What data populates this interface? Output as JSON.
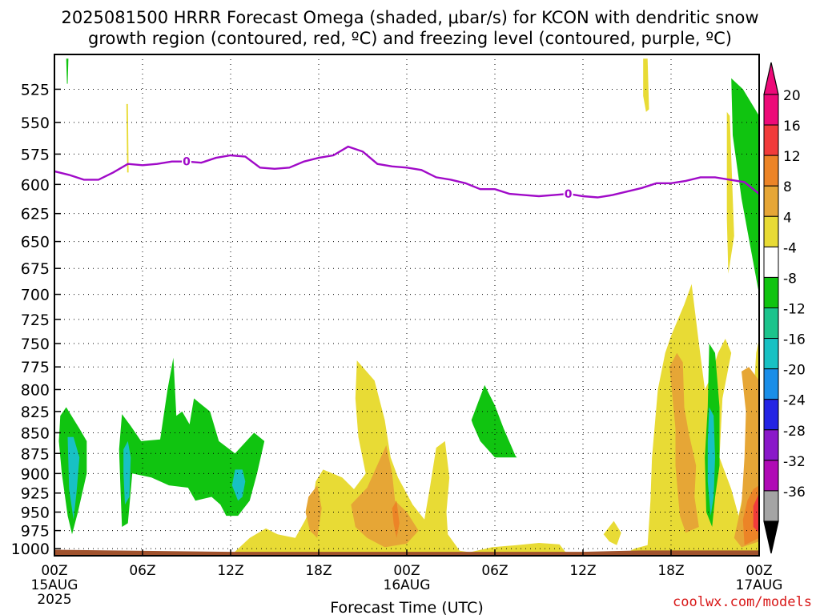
{
  "chart_data": {
    "type": "contour",
    "title_line1": "2025081500 HRRR Forecast Omega (shaded, μbar/s) for KCON with dendritic snow",
    "title_line2": "growth region (contoured, red, ºC) and freezing level (contoured, purple, ºC)",
    "xlabel": "Forecast Time (UTC)",
    "credit": "coolwx.com/models",
    "x_ticks": [
      {
        "hour": 0,
        "label": "00Z",
        "sub": "15AUG",
        "sub2": "2025"
      },
      {
        "hour": 6,
        "label": "06Z"
      },
      {
        "hour": 12,
        "label": "12Z"
      },
      {
        "hour": 18,
        "label": "18Z"
      },
      {
        "hour": 24,
        "label": "00Z",
        "sub": "16AUG"
      },
      {
        "hour": 30,
        "label": "06Z"
      },
      {
        "hour": 36,
        "label": "12Z"
      },
      {
        "hour": 42,
        "label": "18Z"
      },
      {
        "hour": 48,
        "label": "00Z",
        "sub": "17AUG"
      }
    ],
    "x_range_hours": [
      0,
      48
    ],
    "y_ticks": [
      525,
      550,
      575,
      600,
      625,
      650,
      675,
      700,
      725,
      750,
      775,
      800,
      825,
      850,
      875,
      900,
      925,
      950,
      975,
      1000
    ],
    "y_range_hPa": [
      500,
      1010
    ],
    "y_scale": "log-pressure",
    "colorbar_labels": [
      "20",
      "16",
      "12",
      "8",
      "4",
      "-4",
      "-8",
      "-12",
      "-16",
      "-20",
      "-24",
      "-28",
      "-32",
      "-36"
    ],
    "colorbar_colors": [
      "#ed0a78",
      "#f13b3b",
      "#ec8427",
      "#e6a636",
      "#e8db35",
      "#ffffff",
      "#10c410",
      "#1cc48c",
      "#18c1c3",
      "#1a8ee8",
      "#2424e4",
      "#8a18c9",
      "#b00ab5",
      "#a4a4a4"
    ],
    "colors": {
      "purple_line": "#a00ac8",
      "ground": "#a0522d",
      "green": "#10c410",
      "yellow": "#e8db35",
      "orange": "#e6a636",
      "darkorange": "#ec8427",
      "red": "#f13b3b",
      "teal": "#18c1c3"
    },
    "freezing_level_label": "0",
    "freezing_level": [
      [
        0,
        589
      ],
      [
        1,
        592
      ],
      [
        2,
        596
      ],
      [
        3,
        596
      ],
      [
        4,
        590
      ],
      [
        5,
        583
      ],
      [
        6,
        584
      ],
      [
        7,
        583
      ],
      [
        8,
        581
      ],
      [
        9,
        581
      ],
      [
        10,
        582
      ],
      [
        11,
        578
      ],
      [
        12,
        576
      ],
      [
        13,
        577
      ],
      [
        14,
        586
      ],
      [
        15,
        587
      ],
      [
        16,
        586
      ],
      [
        17,
        581
      ],
      [
        18,
        578
      ],
      [
        19,
        576
      ],
      [
        20,
        569
      ],
      [
        21,
        573
      ],
      [
        22,
        583
      ],
      [
        23,
        585
      ],
      [
        24,
        586
      ],
      [
        25,
        588
      ],
      [
        26,
        594
      ],
      [
        27,
        596
      ],
      [
        28,
        599
      ],
      [
        29,
        604
      ],
      [
        30,
        604
      ],
      [
        31,
        608
      ],
      [
        32,
        609
      ],
      [
        33,
        610
      ],
      [
        34,
        609
      ],
      [
        35,
        608
      ],
      [
        36,
        610
      ],
      [
        37,
        611
      ],
      [
        38,
        609
      ],
      [
        39,
        606
      ],
      [
        40,
        603
      ],
      [
        41,
        599
      ],
      [
        42,
        599
      ],
      [
        43,
        597
      ],
      [
        44,
        594
      ],
      [
        45,
        594
      ],
      [
        46,
        596
      ],
      [
        47,
        598
      ],
      [
        48,
        608
      ]
    ],
    "regions": [
      {
        "name": "omega-plus4-hr0-sliver",
        "fill": "green",
        "pts": [
          [
            0.8,
            503
          ],
          [
            0.95,
            503
          ],
          [
            0.9,
            521
          ],
          [
            0.85,
            521
          ]
        ]
      },
      {
        "name": "omega-plus4-hr5",
        "fill": "yellow",
        "pts": [
          [
            4.9,
            536
          ],
          [
            5.0,
            536
          ],
          [
            5.05,
            590
          ],
          [
            4.95,
            590
          ]
        ]
      },
      {
        "name": "omega-plus4-hr40",
        "fill": "yellow",
        "pts": [
          [
            40.1,
            503
          ],
          [
            40.4,
            503
          ],
          [
            40.5,
            540
          ],
          [
            40.3,
            542
          ],
          [
            40.1,
            530
          ]
        ]
      },
      {
        "name": "omega-minus4-hr45-upper",
        "fill": "green",
        "pts": [
          [
            46.1,
            517
          ],
          [
            46.9,
            525
          ],
          [
            48,
            545
          ],
          [
            48,
            700
          ],
          [
            46.8,
            612
          ],
          [
            46.2,
            560
          ]
        ]
      },
      {
        "name": "omega-plus4-hr45-upper",
        "fill": "yellow",
        "pts": [
          [
            45.8,
            542
          ],
          [
            46.0,
            545
          ],
          [
            46.3,
            645
          ],
          [
            45.9,
            680
          ],
          [
            45.8,
            630
          ]
        ]
      },
      {
        "name": "omega-minus4-hr0",
        "fill": "green",
        "pts": [
          [
            0.4,
            830
          ],
          [
            0.8,
            820
          ],
          [
            1.7,
            845
          ],
          [
            2.2,
            860
          ],
          [
            2.2,
            900
          ],
          [
            1.6,
            950
          ],
          [
            1.2,
            980
          ],
          [
            0.9,
            955
          ],
          [
            0.5,
            900
          ],
          [
            0.3,
            860
          ]
        ]
      },
      {
        "name": "omega-minus8-hr0",
        "fill": "teal",
        "pts": [
          [
            0.9,
            855
          ],
          [
            1.3,
            855
          ],
          [
            1.7,
            880
          ],
          [
            1.5,
            925
          ],
          [
            1.3,
            960
          ],
          [
            1.0,
            920
          ]
        ]
      },
      {
        "name": "omega-minus4-hr5",
        "fill": "green",
        "pts": [
          [
            4.4,
            870
          ],
          [
            4.6,
            828
          ],
          [
            5.2,
            842
          ],
          [
            5.9,
            860
          ],
          [
            7.2,
            858
          ],
          [
            7.7,
            800
          ],
          [
            8.1,
            765
          ],
          [
            8.3,
            830
          ],
          [
            8.7,
            825
          ],
          [
            9.2,
            840
          ],
          [
            9.5,
            810
          ],
          [
            10.6,
            825
          ],
          [
            11.2,
            860
          ],
          [
            12.3,
            875
          ],
          [
            13.6,
            850
          ],
          [
            14.3,
            860
          ],
          [
            13.8,
            900
          ],
          [
            13.3,
            935
          ],
          [
            12.5,
            955
          ],
          [
            11.7,
            955
          ],
          [
            11.3,
            940
          ],
          [
            10.7,
            930
          ],
          [
            9.6,
            935
          ],
          [
            9.1,
            918
          ],
          [
            7.8,
            915
          ],
          [
            6.6,
            905
          ],
          [
            5.3,
            900
          ],
          [
            5.0,
            965
          ],
          [
            4.6,
            970
          ],
          [
            4.5,
            920
          ]
        ]
      },
      {
        "name": "omega-minus8-hr5",
        "fill": "teal",
        "pts": [
          [
            4.7,
            870
          ],
          [
            5.0,
            860
          ],
          [
            5.2,
            880
          ],
          [
            5.1,
            930
          ],
          [
            4.8,
            940
          ],
          [
            4.7,
            900
          ]
        ]
      },
      {
        "name": "omega-minus8-hr12",
        "fill": "teal",
        "pts": [
          [
            12.3,
            895
          ],
          [
            12.8,
            895
          ],
          [
            13.0,
            910
          ],
          [
            12.8,
            930
          ],
          [
            12.5,
            935
          ],
          [
            12.1,
            915
          ]
        ]
      },
      {
        "name": "omega-minus4-hr28",
        "fill": "green",
        "pts": [
          [
            28.4,
            835
          ],
          [
            29.3,
            795
          ],
          [
            30.0,
            818
          ],
          [
            30.6,
            845
          ],
          [
            31.4,
            878
          ],
          [
            31.5,
            880
          ],
          [
            30.0,
            880
          ],
          [
            29.0,
            860
          ],
          [
            28.5,
            840
          ]
        ]
      },
      {
        "name": "omega-plus4-hr13",
        "fill": "yellow",
        "pts": [
          [
            12.0,
            1010
          ],
          [
            13.3,
            985
          ],
          [
            14.4,
            972
          ],
          [
            15.2,
            980
          ],
          [
            16.4,
            985
          ],
          [
            17.1,
            960
          ],
          [
            17.6,
            935
          ],
          [
            17.8,
            910
          ],
          [
            18.3,
            895
          ],
          [
            19.6,
            905
          ],
          [
            20.4,
            920
          ],
          [
            21.2,
            900
          ],
          [
            20.7,
            855
          ],
          [
            20.5,
            810
          ],
          [
            20.6,
            768
          ],
          [
            21.8,
            790
          ],
          [
            22.5,
            835
          ],
          [
            22.9,
            880
          ],
          [
            23.4,
            905
          ],
          [
            24.4,
            940
          ],
          [
            25.2,
            960
          ],
          [
            25.6,
            915
          ],
          [
            26.0,
            868
          ],
          [
            26.6,
            860
          ],
          [
            26.9,
            905
          ],
          [
            26.7,
            950
          ],
          [
            26.8,
            980
          ],
          [
            27.6,
            1003
          ],
          [
            28.3,
            1005
          ],
          [
            29.8,
            998
          ],
          [
            31.5,
            995
          ],
          [
            33.0,
            992
          ],
          [
            34.4,
            994
          ],
          [
            35.0,
            1010
          ]
        ]
      },
      {
        "name": "omega-plus8-hr18",
        "fill": "orange",
        "pts": [
          [
            17.3,
            930
          ],
          [
            17.9,
            915
          ],
          [
            18.2,
            945
          ],
          [
            17.9,
            985
          ],
          [
            17.4,
            975
          ],
          [
            17.1,
            950
          ]
        ]
      },
      {
        "name": "omega-plus8-hr20",
        "fill": "orange",
        "pts": [
          [
            20.2,
            940
          ],
          [
            21.3,
            918
          ],
          [
            22.1,
            885
          ],
          [
            22.6,
            865
          ],
          [
            23.0,
            900
          ],
          [
            23.2,
            935
          ],
          [
            24.0,
            950
          ],
          [
            24.8,
            975
          ],
          [
            24.0,
            993
          ],
          [
            22.5,
            998
          ],
          [
            21.3,
            985
          ],
          [
            20.5,
            970
          ]
        ]
      },
      {
        "name": "omega-plus12-hr23",
        "fill": "darkorange",
        "pts": [
          [
            23.0,
            945
          ],
          [
            23.3,
            935
          ],
          [
            23.5,
            965
          ],
          [
            23.3,
            985
          ],
          [
            23.1,
            965
          ]
        ]
      },
      {
        "name": "omega-plus4-hr38",
        "fill": "yellow",
        "pts": [
          [
            37.4,
            980
          ],
          [
            38.1,
            962
          ],
          [
            38.6,
            978
          ],
          [
            38.3,
            995
          ],
          [
            37.8,
            990
          ]
        ]
      },
      {
        "name": "omega-plus4-hr40-lower",
        "fill": "yellow",
        "pts": [
          [
            38.6,
            1010
          ],
          [
            39.5,
            1000
          ],
          [
            40.4,
            995
          ],
          [
            40.6,
            935
          ],
          [
            40.7,
            880
          ],
          [
            41.1,
            800
          ],
          [
            41.6,
            760
          ],
          [
            42.0,
            742
          ],
          [
            42.9,
            710
          ],
          [
            43.4,
            690
          ],
          [
            43.9,
            750
          ],
          [
            44.3,
            800
          ],
          [
            44.6,
            790
          ],
          [
            45.2,
            760
          ],
          [
            45.7,
            745
          ],
          [
            46.1,
            760
          ],
          [
            45.5,
            810
          ],
          [
            45.3,
            880
          ],
          [
            46.1,
            920
          ],
          [
            46.6,
            955
          ],
          [
            47.2,
            900
          ],
          [
            47.5,
            840
          ],
          [
            47.8,
            760
          ],
          [
            48,
            745
          ],
          [
            48,
            1010
          ]
        ]
      },
      {
        "name": "omega-plus8-hr42",
        "fill": "orange",
        "pts": [
          [
            41.9,
            775
          ],
          [
            42.4,
            760
          ],
          [
            42.8,
            770
          ],
          [
            42.9,
            820
          ],
          [
            43.2,
            850
          ],
          [
            43.7,
            890
          ],
          [
            43.6,
            930
          ],
          [
            43.9,
            970
          ],
          [
            43.0,
            978
          ],
          [
            42.6,
            955
          ],
          [
            42.3,
            890
          ],
          [
            42.3,
            845
          ]
        ]
      },
      {
        "name": "omega-plus8-hr47",
        "fill": "orange",
        "pts": [
          [
            46.8,
            780
          ],
          [
            47.3,
            775
          ],
          [
            48,
            790
          ],
          [
            48,
            990
          ],
          [
            46.8,
            998
          ],
          [
            46.3,
            985
          ],
          [
            46.8,
            940
          ],
          [
            47.0,
            880
          ],
          [
            47.1,
            825
          ]
        ]
      },
      {
        "name": "omega-plus12-hr47",
        "fill": "darkorange",
        "pts": [
          [
            47.2,
            935
          ],
          [
            47.6,
            920
          ],
          [
            48,
            915
          ],
          [
            48,
            985
          ],
          [
            47.0,
            995
          ],
          [
            46.9,
            960
          ]
        ]
      },
      {
        "name": "omega-minus4-hr45-lower",
        "fill": "green",
        "pts": [
          [
            44.6,
            750
          ],
          [
            45.0,
            760
          ],
          [
            45.3,
            820
          ],
          [
            45.3,
            890
          ],
          [
            45.0,
            930
          ],
          [
            44.8,
            970
          ],
          [
            44.4,
            950
          ],
          [
            44.3,
            880
          ],
          [
            44.5,
            820
          ]
        ]
      },
      {
        "name": "omega-minus8-hr45",
        "fill": "teal",
        "pts": [
          [
            44.6,
            820
          ],
          [
            44.9,
            830
          ],
          [
            45.0,
            880
          ],
          [
            44.9,
            930
          ],
          [
            44.7,
            955
          ],
          [
            44.5,
            910
          ],
          [
            44.5,
            860
          ]
        ]
      },
      {
        "name": "omega-minus20-hr45",
        "fill": "red",
        "pts": [
          [
            47.6,
            942
          ],
          [
            48,
            925
          ],
          [
            48,
            978
          ],
          [
            47.6,
            970
          ]
        ]
      }
    ]
  }
}
